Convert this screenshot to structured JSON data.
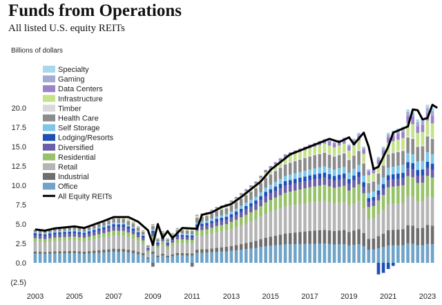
{
  "chart_data": {
    "type": "bar",
    "title": "Funds from Operations",
    "subtitle": "All listed U.S. equity REITs",
    "ylabel": "Billions of dollars",
    "xlabel": "",
    "ylim": [
      -2.5,
      20.5
    ],
    "yticks": [
      "20.0",
      "17.5",
      "15.0",
      "12.5",
      "10.0",
      "7.5",
      "5.0",
      "2.5",
      "0.0",
      "(2.5)"
    ],
    "ytick_values": [
      20,
      17.5,
      15,
      12.5,
      10,
      7.5,
      5,
      2.5,
      0,
      -2.5
    ],
    "xticks": [
      "2003",
      "2005",
      "2007",
      "2009",
      "2011",
      "2013",
      "2015",
      "2017",
      "2019",
      "2021",
      "2023"
    ],
    "x_start": 2003,
    "periods_per_year": 4,
    "legend_position": "top-left",
    "grid": false,
    "stacked": true,
    "series_order": [
      "Office",
      "Industrial",
      "Retail",
      "Residential",
      "Diversified",
      "Lodging/Resorts",
      "Self Storage",
      "Health Care",
      "Timber",
      "Infrastructure",
      "Data Centers",
      "Gaming",
      "Specialty"
    ],
    "legend": [
      "Specialty",
      "Gaming",
      "Data Centers",
      "Infrastructure",
      "Timber",
      "Health Care",
      "Self Storage",
      "Lodging/Resorts",
      "Diversified",
      "Residential",
      "Retail",
      "Industrial",
      "Office",
      "All Equity REITs"
    ],
    "colors": {
      "Specialty": "#a8d8ec",
      "Gaming": "#a4a9d6",
      "Data Centers": "#9b83c9",
      "Infrastructure": "#c4e28a",
      "Timber": "#d9d9d9",
      "Health Care": "#8c8c8c",
      "Self Storage": "#7dc6e8",
      "Lodging/Resorts": "#1f4fb5",
      "Diversified": "#6a5fa8",
      "Residential": "#97c26a",
      "Retail": "#b5b5b5",
      "Industrial": "#6e6e6e",
      "Office": "#6fa3c7",
      "All Equity REITs": "#000000"
    },
    "total_series_name": "All Equity REITs",
    "total_knots": [
      [
        2003.0,
        4.3
      ],
      [
        2003.5,
        4.15
      ],
      [
        2004.0,
        4.45
      ],
      [
        2005.0,
        4.7
      ],
      [
        2005.5,
        4.5
      ],
      [
        2006.5,
        5.4
      ],
      [
        2007.0,
        5.9
      ],
      [
        2007.75,
        5.9
      ],
      [
        2008.25,
        5.3
      ],
      [
        2008.75,
        4.2
      ],
      [
        2009.0,
        2.3
      ],
      [
        2009.25,
        5.0
      ],
      [
        2009.5,
        3.2
      ],
      [
        2009.75,
        4.1
      ],
      [
        2010.0,
        3.2
      ],
      [
        2010.5,
        4.5
      ],
      [
        2011.25,
        4.4
      ],
      [
        2011.5,
        6.2
      ],
      [
        2012.0,
        6.5
      ],
      [
        2012.5,
        7.2
      ],
      [
        2013.0,
        7.6
      ],
      [
        2013.5,
        8.5
      ],
      [
        2014.0,
        9.5
      ],
      [
        2014.5,
        10.5
      ],
      [
        2015.0,
        12.0
      ],
      [
        2015.5,
        13.0
      ],
      [
        2016.0,
        14.0
      ],
      [
        2016.5,
        14.5
      ],
      [
        2017.0,
        15.0
      ],
      [
        2017.5,
        15.5
      ],
      [
        2018.0,
        16.0
      ],
      [
        2018.5,
        15.6
      ],
      [
        2019.0,
        16.2
      ],
      [
        2019.25,
        15.3
      ],
      [
        2019.75,
        16.8
      ],
      [
        2020.0,
        15.0
      ],
      [
        2020.25,
        12.1
      ],
      [
        2020.5,
        12.4
      ],
      [
        2021.0,
        15.0
      ],
      [
        2021.25,
        16.8
      ],
      [
        2022.0,
        17.6
      ],
      [
        2022.25,
        19.8
      ],
      [
        2022.5,
        19.7
      ],
      [
        2022.75,
        18.5
      ],
      [
        2023.0,
        18.7
      ],
      [
        2023.25,
        20.4
      ],
      [
        2023.5,
        20.0
      ]
    ],
    "total_values": [
      4.3,
      4.23,
      4.15,
      4.3,
      4.45,
      4.51,
      4.58,
      4.64,
      4.7,
      4.6,
      4.5,
      4.73,
      4.95,
      5.18,
      5.4,
      5.65,
      5.9,
      5.9,
      5.9,
      5.6,
      5.3,
      4.75,
      4.2,
      2.3,
      5.0,
      3.2,
      4.1,
      3.2,
      3.85,
      4.5,
      4.47,
      4.43,
      4.4,
      6.2,
      6.35,
      6.5,
      6.85,
      7.2,
      7.4,
      7.6,
      8.05,
      8.5,
      9.0,
      9.5,
      10.0,
      10.5,
      11.25,
      12.0,
      12.5,
      13.0,
      13.5,
      14.0,
      14.25,
      14.5,
      14.75,
      15.0,
      15.25,
      15.5,
      15.75,
      16.0,
      15.8,
      15.6,
      15.9,
      16.2,
      15.3,
      16.05,
      16.8,
      15.0,
      12.1,
      12.4,
      13.7,
      15.0,
      16.8,
      17.07,
      17.33,
      17.6,
      19.8,
      19.7,
      18.5,
      18.7,
      20.4,
      20.0
    ],
    "share_profile": {
      "Office": [
        0.28,
        0.2,
        0.16,
        0.12
      ],
      "Industrial": [
        0.06,
        0.07,
        0.11,
        0.12
      ],
      "Retail": [
        0.3,
        0.28,
        0.24,
        0.18
      ],
      "Residential": [
        0.1,
        0.11,
        0.13,
        0.13
      ],
      "Diversified": [
        0.09,
        0.08,
        0.06,
        0.05
      ],
      "Lodging/Resorts": [
        0.06,
        0.05,
        0.04,
        0.04
      ],
      "Self Storage": [
        0.03,
        0.04,
        0.05,
        0.06
      ],
      "Health Care": [
        0.08,
        0.1,
        0.11,
        0.1
      ],
      "Timber": [
        0.0,
        0.01,
        0.01,
        0.01
      ],
      "Infrastructure": [
        0.0,
        0.04,
        0.06,
        0.09
      ],
      "Data Centers": [
        0.0,
        0.02,
        0.03,
        0.05
      ],
      "Gaming": [
        0.0,
        0.0,
        0.0,
        0.03
      ],
      "Specialty": [
        0.0,
        0.0,
        0.0,
        0.02
      ]
    },
    "share_profile_years": [
      2003,
      2012,
      2017,
      2023
    ],
    "negative_bars": [
      {
        "x": 2009.0,
        "series": "Industrial",
        "value": -0.5
      },
      {
        "x": 2011.0,
        "series": "Industrial",
        "value": -0.5
      },
      {
        "x": 2020.5,
        "series": "Lodging/Resorts",
        "value": -1.5
      },
      {
        "x": 2020.75,
        "series": "Lodging/Resorts",
        "value": -1.3
      },
      {
        "x": 2021.0,
        "series": "Lodging/Resorts",
        "value": -0.8
      },
      {
        "x": 2021.25,
        "series": "Lodging/Resorts",
        "value": -0.4
      }
    ]
  }
}
